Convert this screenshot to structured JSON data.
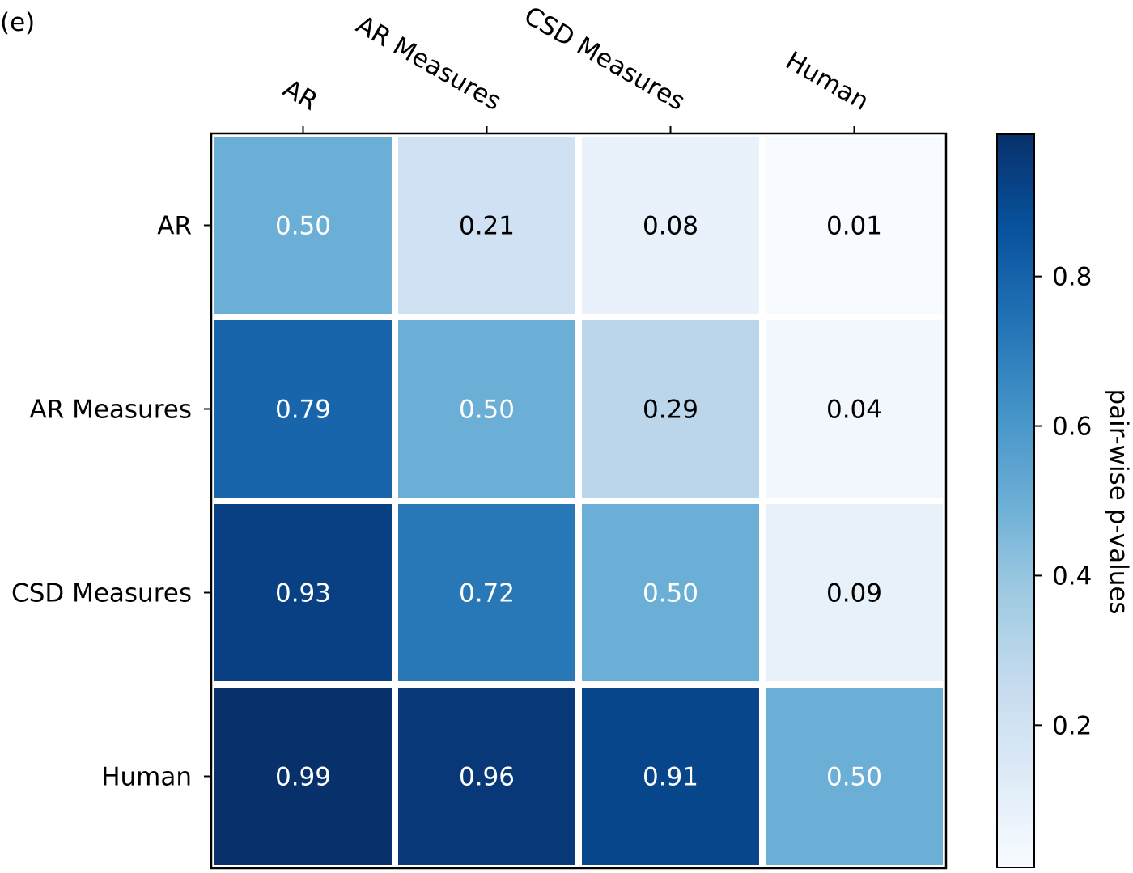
{
  "panel_label": "(e)",
  "chart_data": {
    "type": "heatmap",
    "x_labels": [
      "AR",
      "AR Measures",
      "CSD Measures",
      "Human"
    ],
    "y_labels": [
      "AR",
      "AR Measures",
      "CSD Measures",
      "Human"
    ],
    "x_axis_position": "top",
    "values": [
      [
        0.5,
        0.21,
        0.08,
        0.01
      ],
      [
        0.79,
        0.5,
        0.29,
        0.04
      ],
      [
        0.93,
        0.72,
        0.5,
        0.09
      ],
      [
        0.99,
        0.96,
        0.91,
        0.5
      ]
    ],
    "value_labels": [
      [
        "0.50",
        "0.21",
        "0.08",
        "0.01"
      ],
      [
        "0.79",
        "0.50",
        "0.29",
        "0.04"
      ],
      [
        "0.93",
        "0.72",
        "0.50",
        "0.09"
      ],
      [
        "0.99",
        "0.96",
        "0.91",
        "0.50"
      ]
    ],
    "colormap": "Blues",
    "color_range": [
      0.01,
      0.99
    ],
    "colorbar": {
      "label": "pair-wise p-values",
      "ticks": [
        0.2,
        0.4,
        0.6,
        0.8
      ],
      "tick_labels": [
        "0.2",
        "0.4",
        "0.6",
        "0.8"
      ]
    },
    "grid": false
  }
}
